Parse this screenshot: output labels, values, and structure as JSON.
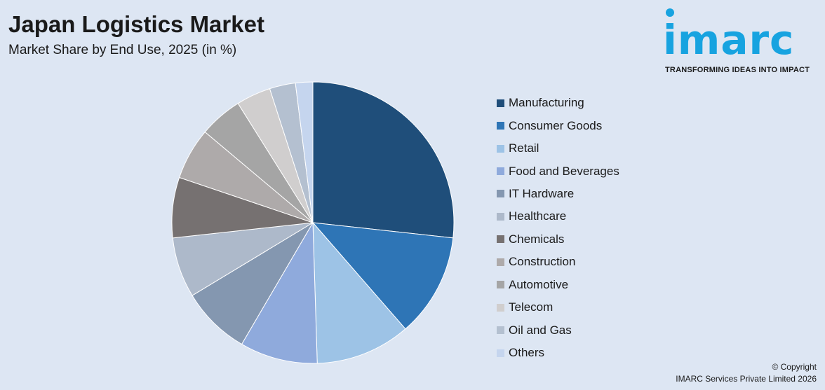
{
  "header": {
    "title": "Japan Logistics Market",
    "subtitle": "Market Share by End Use, 2025 (in %)"
  },
  "brand": {
    "logo_text": "imarc",
    "tagline": "TRANSFORMING IDEAS INTO IMPACT",
    "color": "#17a3e0"
  },
  "footer": {
    "copyright_line1": "© Copyright",
    "copyright_line2": "IMARC Services Private Limited 2026"
  },
  "chart_data": {
    "type": "pie",
    "title": "Japan Logistics Market",
    "subtitle": "Market Share by End Use, 2025 (in %)",
    "legend_position": "right",
    "start": "12 o'clock, clockwise",
    "categories": [
      "Manufacturing",
      "Consumer Goods",
      "Retail",
      "Food and Beverages",
      "IT Hardware",
      "Healthcare",
      "Chemicals",
      "Construction",
      "Automotive",
      "Telecom",
      "Oil and Gas",
      "Others"
    ],
    "values": [
      27,
      12,
      11,
      9,
      8,
      7,
      7,
      6,
      5,
      4,
      3,
      2
    ],
    "colors": [
      "#1f4e7a",
      "#2e75b6",
      "#9dc3e6",
      "#8faadc",
      "#8497b0",
      "#adb9ca",
      "#767171",
      "#aeaaaa",
      "#a5a5a5",
      "#d0cece",
      "#b4c0d0",
      "#c5d5ee"
    ]
  }
}
